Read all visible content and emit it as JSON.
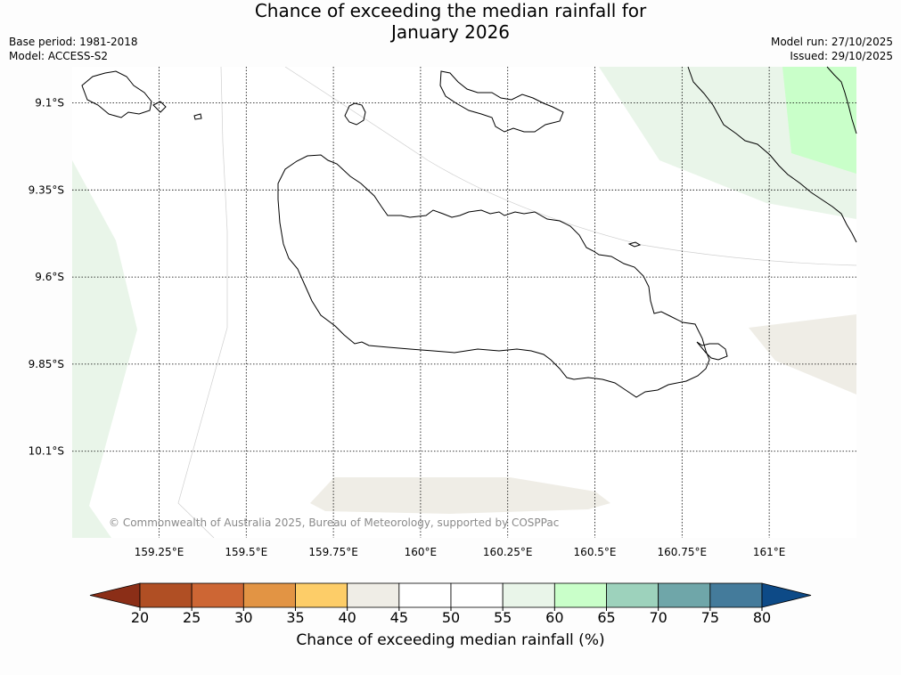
{
  "title_line1": "Chance of exceeding the median rainfall for",
  "title_line2": "January 2026",
  "base_period": "Base period: 1981-2018",
  "model": "Model: ACCESS-S2",
  "model_run": "Model run: 27/10/2025",
  "issued": "Issued: 29/10/2025",
  "copyright": "© Commonwealth of Australia 2025, Bureau of Meteorology, supported by COSPPac",
  "map": {
    "lon_range": [
      159.0,
      161.25
    ],
    "lat_range": [
      -10.35,
      -9.01
    ],
    "lon_ticks": [
      159.25,
      159.5,
      159.75,
      160.0,
      160.25,
      160.5,
      160.75,
      161.0
    ],
    "lon_tick_labels": [
      "159.25°E",
      "159.5°E",
      "159.75°E",
      "160°E",
      "160.25°E",
      "160.5°E",
      "160.75°E",
      "161°E"
    ],
    "lat_ticks": [
      -9.1,
      -9.35,
      -9.6,
      -9.85,
      -10.1
    ],
    "lat_tick_labels": [
      "9.1°S",
      "9.35°S",
      "9.6°S",
      "9.85°S",
      "10.1°S"
    ],
    "gridlines": true
  },
  "colorbar": {
    "label": "Chance of exceeding median rainfall (%)",
    "tick_labels": [
      "20",
      "25",
      "30",
      "35",
      "40",
      "45",
      "50",
      "55",
      "60",
      "65",
      "70",
      "75",
      "80"
    ],
    "under_color": "#8b2e17",
    "over_color": "#0d4a87",
    "bins": [
      {
        "from": 20,
        "to": 25,
        "color": "#b04f24"
      },
      {
        "from": 25,
        "to": 30,
        "color": "#cd6634"
      },
      {
        "from": 30,
        "to": 35,
        "color": "#e29444"
      },
      {
        "from": 35,
        "to": 40,
        "color": "#fdcd68"
      },
      {
        "from": 40,
        "to": 45,
        "color": "#efede6"
      },
      {
        "from": 45,
        "to": 50,
        "color": "#ffffff"
      },
      {
        "from": 50,
        "to": 55,
        "color": "#ffffff"
      },
      {
        "from": 55,
        "to": 60,
        "color": "#e9f5e9"
      },
      {
        "from": 60,
        "to": 65,
        "color": "#c9ffc9"
      },
      {
        "from": 65,
        "to": 70,
        "color": "#9dd2bc"
      },
      {
        "from": 70,
        "to": 75,
        "color": "#6fa6a9"
      },
      {
        "from": 75,
        "to": 80,
        "color": "#447b9b"
      }
    ]
  },
  "regions": [
    {
      "range": "55-60",
      "color": "#e9f5e9",
      "location": "west edge"
    },
    {
      "range": "55-60",
      "color": "#e9f5e9",
      "location": "north-east"
    },
    {
      "range": "60-65",
      "color": "#c9ffc9",
      "location": "far north-east"
    },
    {
      "range": "40-45",
      "color": "#efede6",
      "location": "east edge"
    },
    {
      "range": "40-45",
      "color": "#efede6",
      "location": "south centre"
    }
  ]
}
